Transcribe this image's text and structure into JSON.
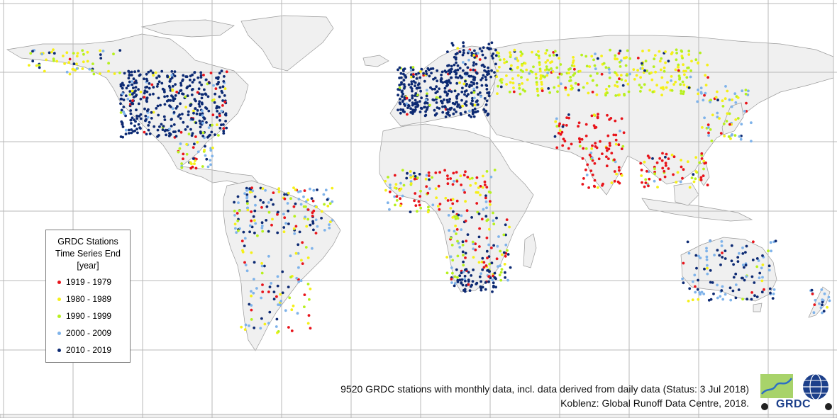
{
  "legend": {
    "title_line1": "GRDC Stations",
    "title_line2": "Time Series End",
    "title_line3": "[year]",
    "classes": [
      {
        "label": "1919 - 1979",
        "color": "#e8141b"
      },
      {
        "label": "1980 - 1989",
        "color": "#f5f018"
      },
      {
        "label": "1990 - 1999",
        "color": "#b7f01e"
      },
      {
        "label": "2000 - 2009",
        "color": "#7fb3ea"
      },
      {
        "label": "2010 - 2019",
        "color": "#0d2a73"
      }
    ]
  },
  "caption": {
    "line1": "9520 GRDC stations with monthly data, incl. data derived from daily data (Status: 3 Jul 2018)",
    "line2": "Koblenz: Global Runoff Data Centre, 2018."
  },
  "logo": {
    "text": "GRDC"
  },
  "map": {
    "land_color": "#f0f0f0",
    "border_color": "#9a9a9a",
    "grid_color": "#b9b9b9",
    "grid_spacing_deg": 30
  }
}
